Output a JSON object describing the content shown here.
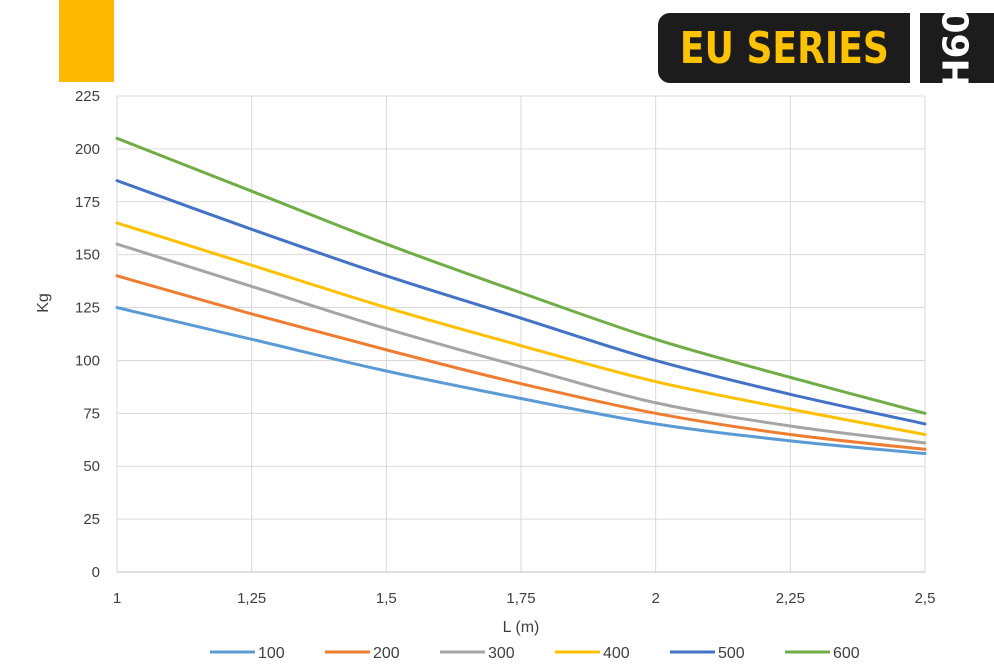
{
  "header": {
    "brand": "EU SERIES",
    "model": "H60",
    "accent_color": "#ffb800",
    "badge_color": "#1c1c1c"
  },
  "chart_data": {
    "type": "line",
    "xlabel": "L (m)",
    "ylabel": "Kg",
    "xlim": [
      1,
      2.5
    ],
    "ylim": [
      0,
      225
    ],
    "x_ticks": [
      "1",
      "1,25",
      "1,5",
      "1,75",
      "2",
      "2,25",
      "2,5"
    ],
    "y_ticks": [
      "0",
      "25",
      "50",
      "75",
      "100",
      "125",
      "150",
      "175",
      "200",
      "225"
    ],
    "grid": true,
    "legend": "bottom",
    "x": [
      1,
      1.25,
      1.5,
      1.75,
      2,
      2.25,
      2.5
    ],
    "series": [
      {
        "name": "100",
        "color": "#5b9bd5",
        "values": [
          125,
          110,
          95,
          82,
          70,
          62,
          56
        ]
      },
      {
        "name": "200",
        "color": "#ed7d31",
        "values": [
          140,
          122,
          105,
          89,
          75,
          65,
          58
        ]
      },
      {
        "name": "300",
        "color": "#a5a5a5",
        "values": [
          155,
          135,
          115,
          97,
          80,
          69,
          61
        ]
      },
      {
        "name": "400",
        "color": "#ffc000",
        "values": [
          165,
          145,
          125,
          107,
          90,
          77,
          65
        ]
      },
      {
        "name": "500",
        "color": "#4472c4",
        "values": [
          185,
          162,
          140,
          120,
          100,
          84,
          70
        ]
      },
      {
        "name": "600",
        "color": "#70ad47",
        "values": [
          205,
          180,
          155,
          132,
          110,
          92,
          75
        ]
      }
    ]
  }
}
